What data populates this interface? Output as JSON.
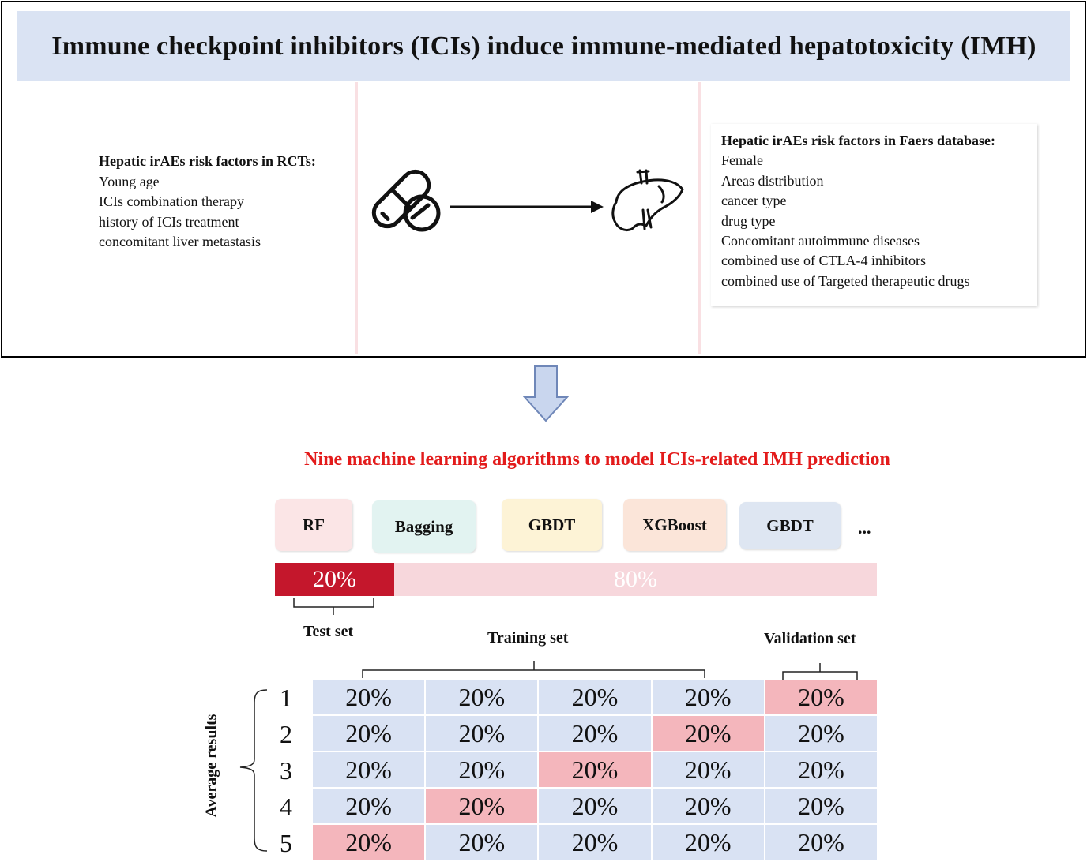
{
  "banner": {
    "title": "Immune checkpoint inhibitors (ICIs) induce immune-mediated hepatotoxicity (IMH)"
  },
  "rct": {
    "header": "Hepatic irAEs risk factors in RCTs:",
    "items": [
      "Young age",
      "ICIs combination therapy",
      "history of ICIs treatment",
      "concomitant liver metastasis"
    ]
  },
  "faers": {
    "header": "Hepatic irAEs risk factors in Faers database:",
    "items": [
      "Female",
      "Areas distribution",
      "cancer type",
      "drug type",
      "Concomitant autoimmune diseases",
      "combined use of CTLA-4 inhibitors",
      "combined use of Targeted therapeutic drugs"
    ]
  },
  "icons": {
    "left": "pill-capsules-icon",
    "right": "liver-icon"
  },
  "ml": {
    "title": "Nine machine learning algorithms to model ICIs-related IMH prediction",
    "title_color": "#e31b1b",
    "algorithms": [
      {
        "label": "RF",
        "color": "#fbe5e6"
      },
      {
        "label": "Bagging",
        "color": "#e2f3f1"
      },
      {
        "label": "GBDT",
        "color": "#fdf3d6"
      },
      {
        "label": "XGBoost",
        "color": "#fbe5d9"
      },
      {
        "label": "GBDT",
        "color": "#dee6f2"
      }
    ],
    "more": "..."
  },
  "split": {
    "test": "20%",
    "train": "80%",
    "test_fraction": 0.2,
    "test_color": "#c4172c",
    "train_color": "#f7d7dc"
  },
  "labels": {
    "test_set": "Test set",
    "training_set": "Training set",
    "validation_set": "Validation set",
    "average": "Average results"
  },
  "cv": {
    "rows": [
      {
        "num": "1",
        "cells": [
          "20%",
          "20%",
          "20%",
          "20%",
          "20%"
        ],
        "val_index": 4
      },
      {
        "num": "2",
        "cells": [
          "20%",
          "20%",
          "20%",
          "20%",
          "20%"
        ],
        "val_index": 3
      },
      {
        "num": "3",
        "cells": [
          "20%",
          "20%",
          "20%",
          "20%",
          "20%"
        ],
        "val_index": 2
      },
      {
        "num": "4",
        "cells": [
          "20%",
          "20%",
          "20%",
          "20%",
          "20%"
        ],
        "val_index": 1
      },
      {
        "num": "5",
        "cells": [
          "20%",
          "20%",
          "20%",
          "20%",
          "20%"
        ],
        "val_index": 0
      }
    ],
    "train_color": "#d9e2f3",
    "val_color": "#f4b6bc"
  }
}
